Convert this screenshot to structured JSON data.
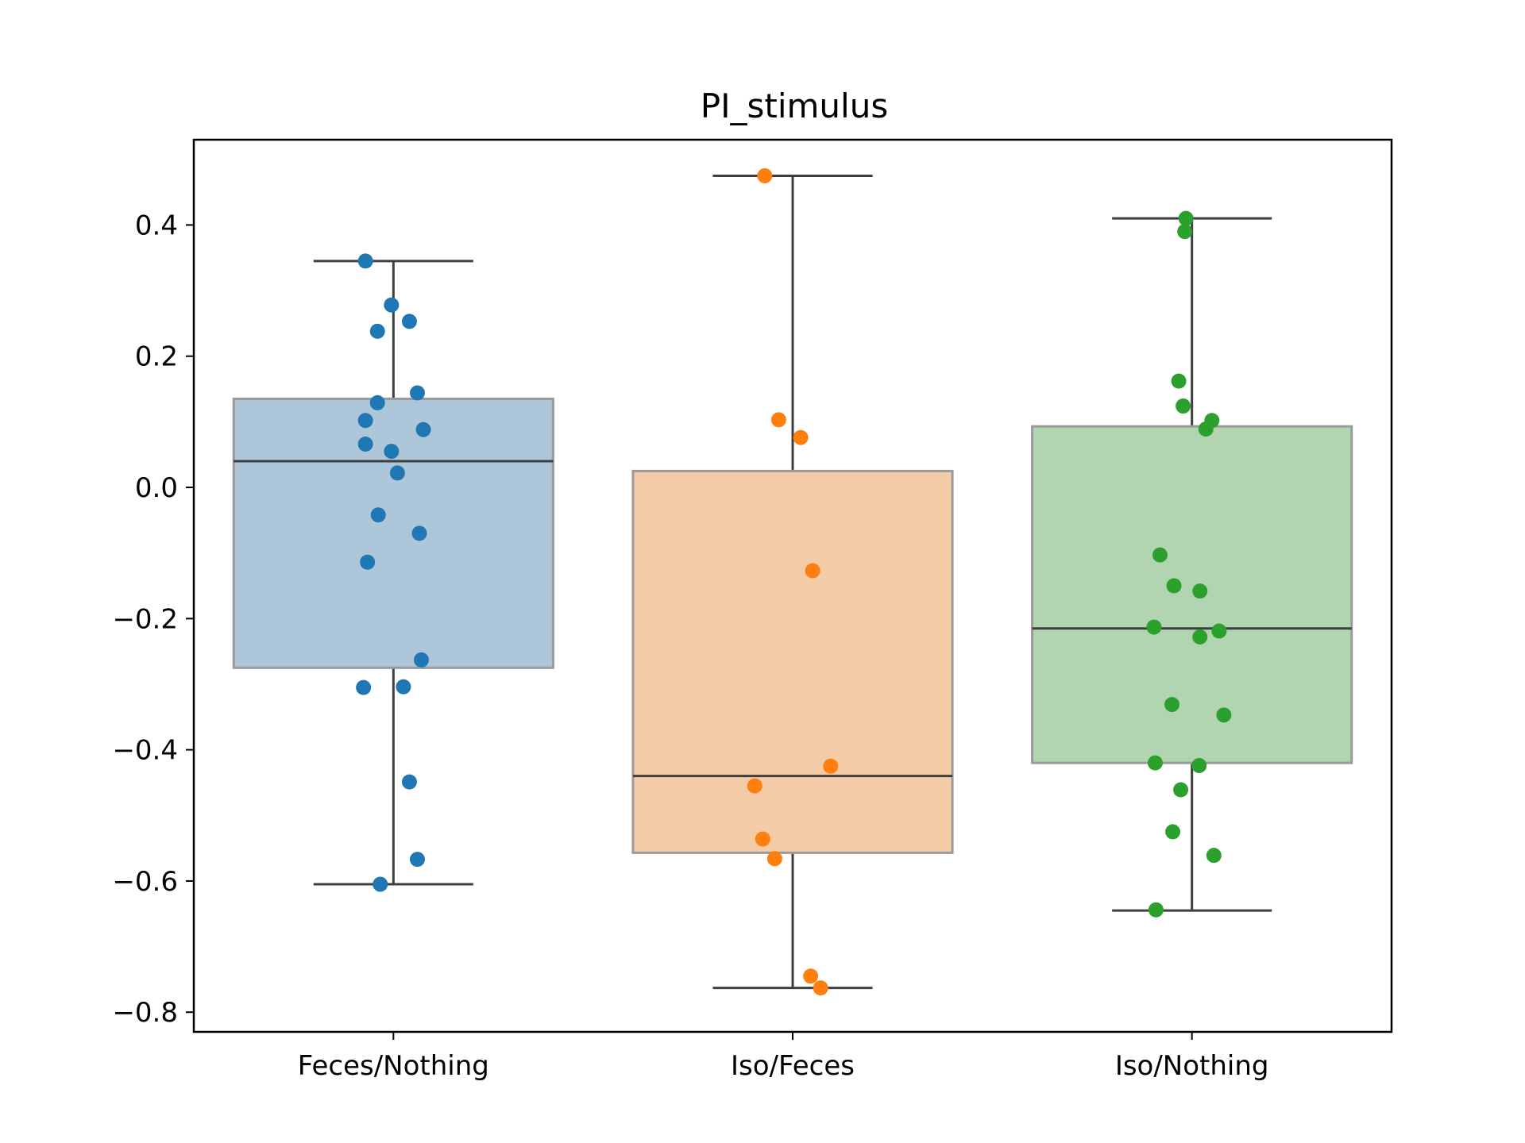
{
  "chart_data": {
    "type": "box",
    "title": "PI_stimulus",
    "xlabel": "",
    "ylabel": "",
    "categories": [
      "Feces/Nothing",
      "Iso/Feces",
      "Iso/Nothing"
    ],
    "ylim": [
      -0.83,
      0.53
    ],
    "yticks": [
      -0.8,
      -0.6,
      -0.4,
      -0.2,
      0.0,
      0.2,
      0.4
    ],
    "ytick_labels": [
      "−0.8",
      "−0.6",
      "−0.4",
      "−0.2",
      "0.0",
      "0.2",
      "0.4"
    ],
    "grid": false,
    "boxes": [
      {
        "category": "Feces/Nothing",
        "whisker_low": -0.605,
        "q1": -0.275,
        "median": 0.04,
        "q3": 0.135,
        "whisker_high": 0.345
      },
      {
        "category": "Iso/Feces",
        "whisker_low": -0.763,
        "q1": -0.557,
        "median": -0.44,
        "q3": 0.025,
        "whisker_high": 0.475
      },
      {
        "category": "Iso/Nothing",
        "whisker_low": -0.645,
        "q1": -0.42,
        "median": -0.215,
        "q3": 0.093,
        "whisker_high": 0.41
      }
    ],
    "series": [
      {
        "category": "Feces/Nothing",
        "color": "#1f77b4",
        "box_fill": "#aec6da",
        "points": [
          {
            "jitter": -0.07,
            "y": 0.345
          },
          {
            "jitter": -0.005,
            "y": 0.278
          },
          {
            "jitter": 0.04,
            "y": 0.253
          },
          {
            "jitter": -0.04,
            "y": 0.238
          },
          {
            "jitter": 0.06,
            "y": 0.144
          },
          {
            "jitter": -0.04,
            "y": 0.129
          },
          {
            "jitter": -0.07,
            "y": 0.102
          },
          {
            "jitter": 0.075,
            "y": 0.088
          },
          {
            "jitter": -0.07,
            "y": 0.066
          },
          {
            "jitter": -0.005,
            "y": 0.055
          },
          {
            "jitter": 0.01,
            "y": 0.022
          },
          {
            "jitter": -0.038,
            "y": -0.042
          },
          {
            "jitter": 0.065,
            "y": -0.07
          },
          {
            "jitter": -0.065,
            "y": -0.114
          },
          {
            "jitter": 0.07,
            "y": -0.263
          },
          {
            "jitter": -0.075,
            "y": -0.305
          },
          {
            "jitter": 0.025,
            "y": -0.304
          },
          {
            "jitter": 0.04,
            "y": -0.449
          },
          {
            "jitter": 0.06,
            "y": -0.567
          },
          {
            "jitter": -0.033,
            "y": -0.605
          }
        ]
      },
      {
        "category": "Iso/Feces",
        "color": "#ff7f0e",
        "box_fill": "#f4cba7",
        "points": [
          {
            "jitter": -0.07,
            "y": 0.475
          },
          {
            "jitter": -0.035,
            "y": 0.103
          },
          {
            "jitter": 0.02,
            "y": 0.076
          },
          {
            "jitter": 0.05,
            "y": -0.127
          },
          {
            "jitter": 0.095,
            "y": -0.425
          },
          {
            "jitter": -0.095,
            "y": -0.455
          },
          {
            "jitter": -0.075,
            "y": -0.536
          },
          {
            "jitter": -0.045,
            "y": -0.566
          },
          {
            "jitter": 0.045,
            "y": -0.745
          },
          {
            "jitter": 0.07,
            "y": -0.763
          }
        ]
      },
      {
        "category": "Iso/Nothing",
        "color": "#2ca02c",
        "box_fill": "#b1d5b1",
        "points": [
          {
            "jitter": -0.015,
            "y": 0.41
          },
          {
            "jitter": -0.018,
            "y": 0.39
          },
          {
            "jitter": -0.033,
            "y": 0.162
          },
          {
            "jitter": -0.022,
            "y": 0.124
          },
          {
            "jitter": 0.05,
            "y": 0.102
          },
          {
            "jitter": 0.035,
            "y": 0.089
          },
          {
            "jitter": -0.08,
            "y": -0.103
          },
          {
            "jitter": -0.045,
            "y": -0.15
          },
          {
            "jitter": 0.02,
            "y": -0.158
          },
          {
            "jitter": -0.095,
            "y": -0.213
          },
          {
            "jitter": 0.068,
            "y": -0.219
          },
          {
            "jitter": 0.02,
            "y": -0.228
          },
          {
            "jitter": -0.05,
            "y": -0.331
          },
          {
            "jitter": 0.08,
            "y": -0.347
          },
          {
            "jitter": -0.092,
            "y": -0.42
          },
          {
            "jitter": 0.018,
            "y": -0.424
          },
          {
            "jitter": -0.028,
            "y": -0.461
          },
          {
            "jitter": -0.048,
            "y": -0.525
          },
          {
            "jitter": 0.055,
            "y": -0.561
          },
          {
            "jitter": -0.09,
            "y": -0.644
          }
        ]
      }
    ]
  }
}
